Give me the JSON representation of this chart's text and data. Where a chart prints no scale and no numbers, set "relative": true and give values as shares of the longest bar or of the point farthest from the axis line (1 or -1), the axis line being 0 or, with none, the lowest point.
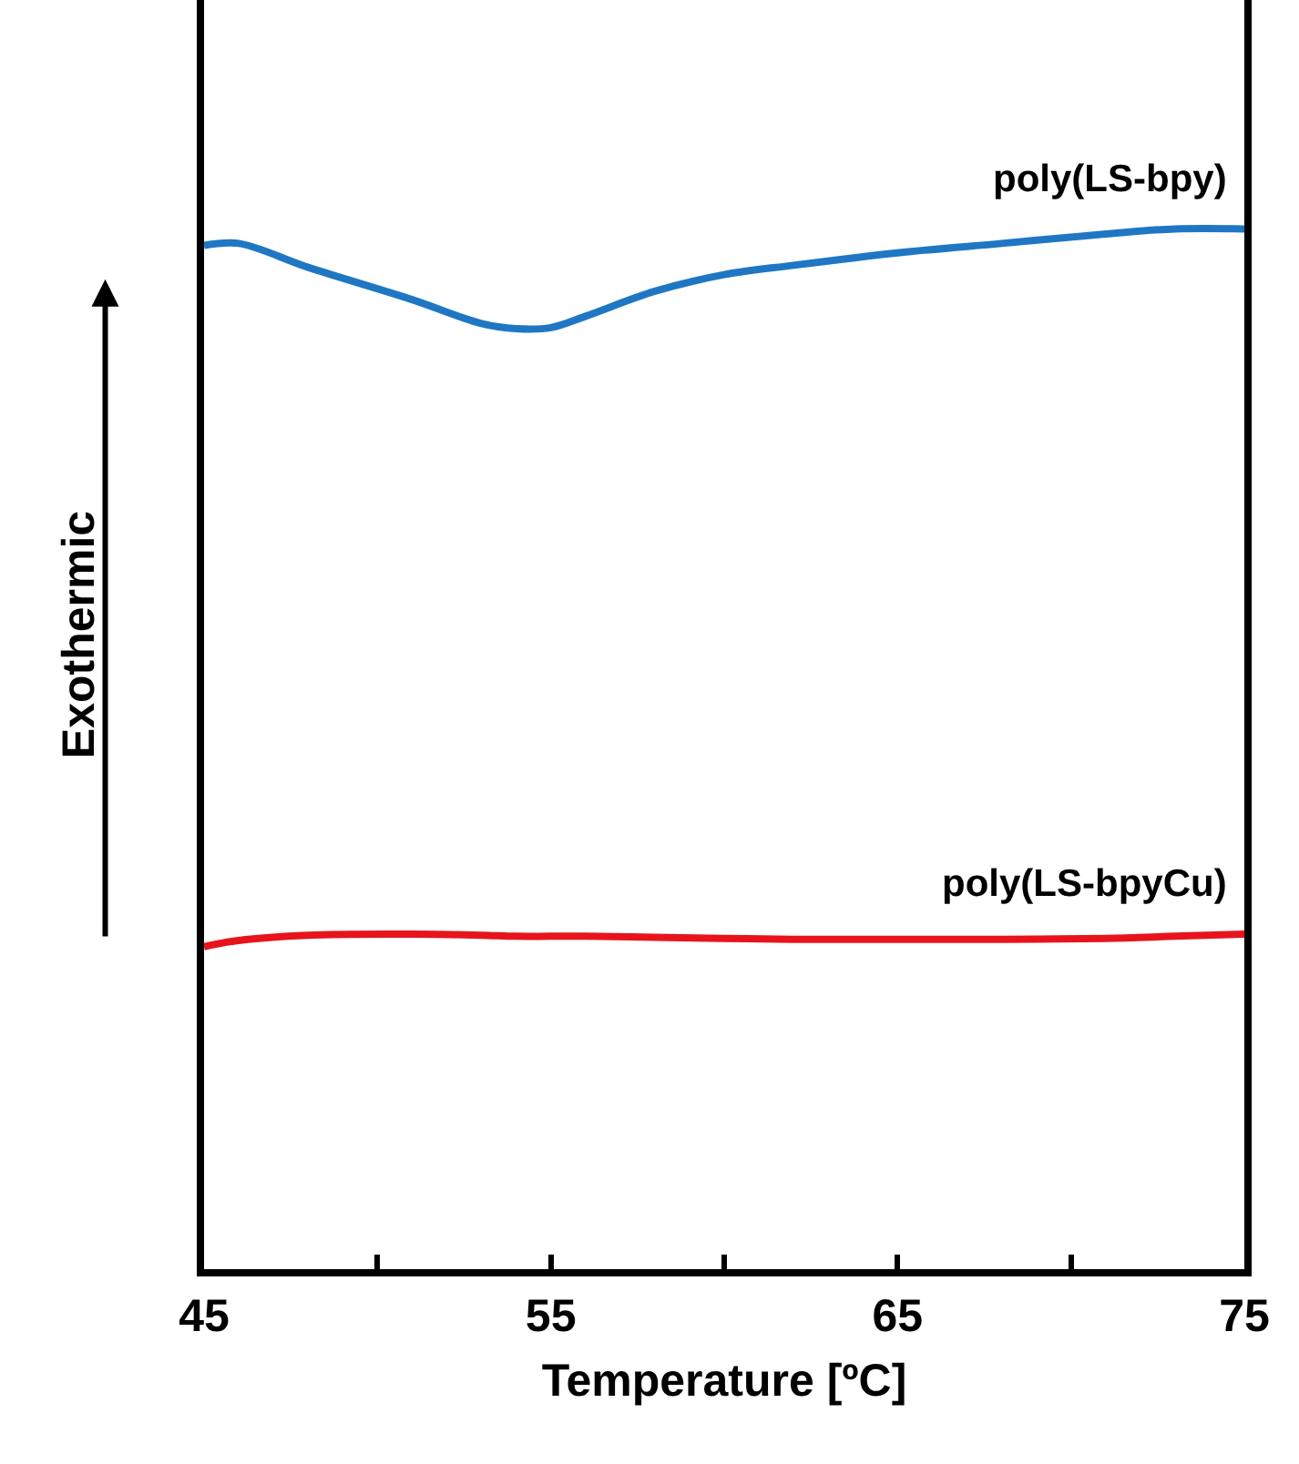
{
  "chart_data": {
    "type": "line",
    "relative": true,
    "xlabel": "Temperature [ºC]",
    "ylabel": "Exothermic",
    "x": [
      45,
      46,
      48,
      51,
      53,
      54,
      55,
      56,
      58,
      60,
      62,
      65,
      68,
      71,
      73,
      75
    ],
    "xlim": [
      45,
      75
    ],
    "xticks": [
      45,
      {
        "value": 50,
        "label": null
      },
      55,
      {
        "value": 60,
        "label": null
      },
      65,
      {
        "value": 70,
        "label": null
      },
      75
    ],
    "series": [
      {
        "name": "poly(LS-bpy)",
        "color": "#1f77c4",
        "values": [
          0.984,
          0.986,
          0.963,
          0.932,
          0.909,
          0.904,
          0.905,
          0.916,
          0.94,
          0.956,
          0.965,
          0.977,
          0.986,
          0.995,
          1.0,
          1.0
        ]
      },
      {
        "name": "poly(LS-bpyCu)",
        "color": "#e8141c",
        "values": [
          0.31,
          0.316,
          0.321,
          0.322,
          0.321,
          0.32,
          0.32,
          0.32,
          0.319,
          0.318,
          0.317,
          0.317,
          0.317,
          0.318,
          0.32,
          0.322
        ]
      }
    ],
    "legend": false,
    "marker": "none",
    "line_style": "solid"
  }
}
